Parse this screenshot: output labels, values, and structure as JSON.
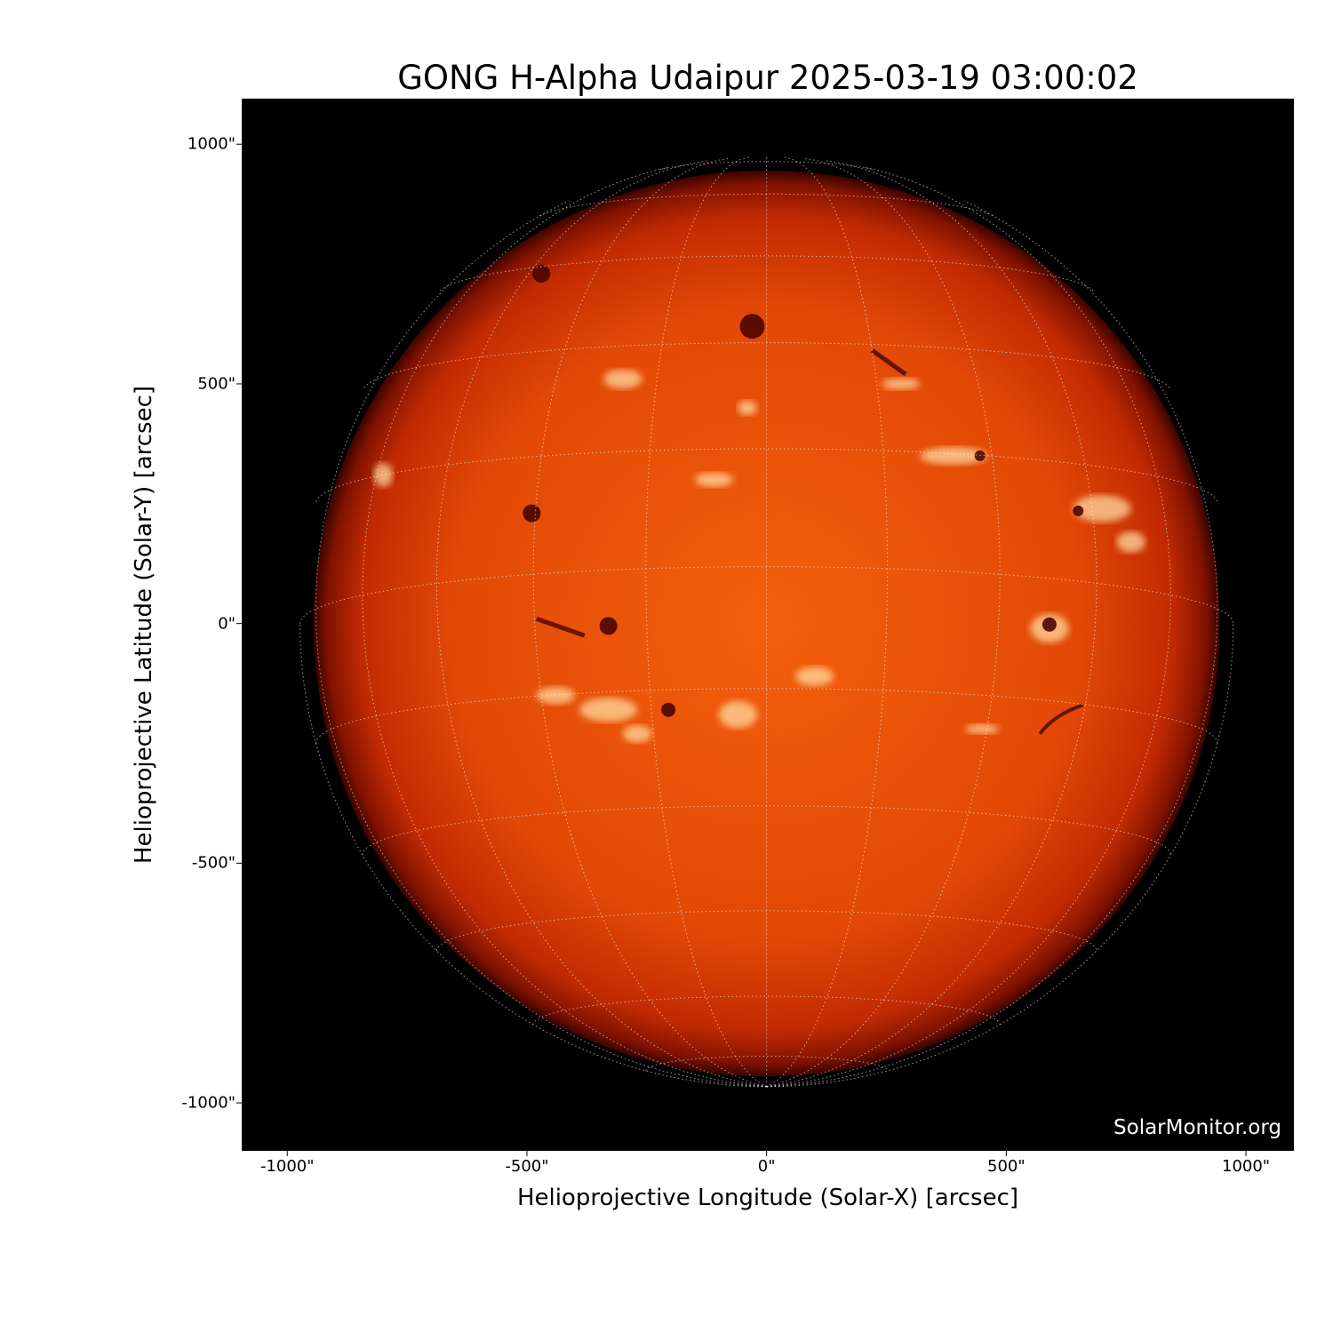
{
  "title": "GONG H-Alpha Udaipur 2025-03-19 03:00:02",
  "xlabel": "Helioprojective Longitude (Solar-X) [arcsec]",
  "ylabel": "Helioprojective Latitude (Solar-Y) [arcsec]",
  "watermark": "SolarMonitor.org",
  "xlim": [
    -1095,
    1100
  ],
  "ylim": [
    -1100,
    1095
  ],
  "x_ticks": [
    {
      "value": -1000,
      "label": "-1000\""
    },
    {
      "value": -500,
      "label": "-500\""
    },
    {
      "value": 0,
      "label": "0\""
    },
    {
      "value": 500,
      "label": "500\""
    },
    {
      "value": 1000,
      "label": "1000\""
    }
  ],
  "y_ticks": [
    {
      "value": 1000,
      "label": "1000\""
    },
    {
      "value": 500,
      "label": "500\""
    },
    {
      "value": 0,
      "label": "0\""
    },
    {
      "value": -500,
      "label": "-500\""
    },
    {
      "value": -1000,
      "label": "-1000\""
    }
  ],
  "solar_radius_arcsec": 945,
  "grid_spacing_deg": 15,
  "colors": {
    "background": "#000000",
    "disk_center": "#f05a0a",
    "disk_limb": "#5a0800",
    "plage": "#ffd9a0",
    "filament": "#4a0500",
    "grid": "#ffffff"
  }
}
